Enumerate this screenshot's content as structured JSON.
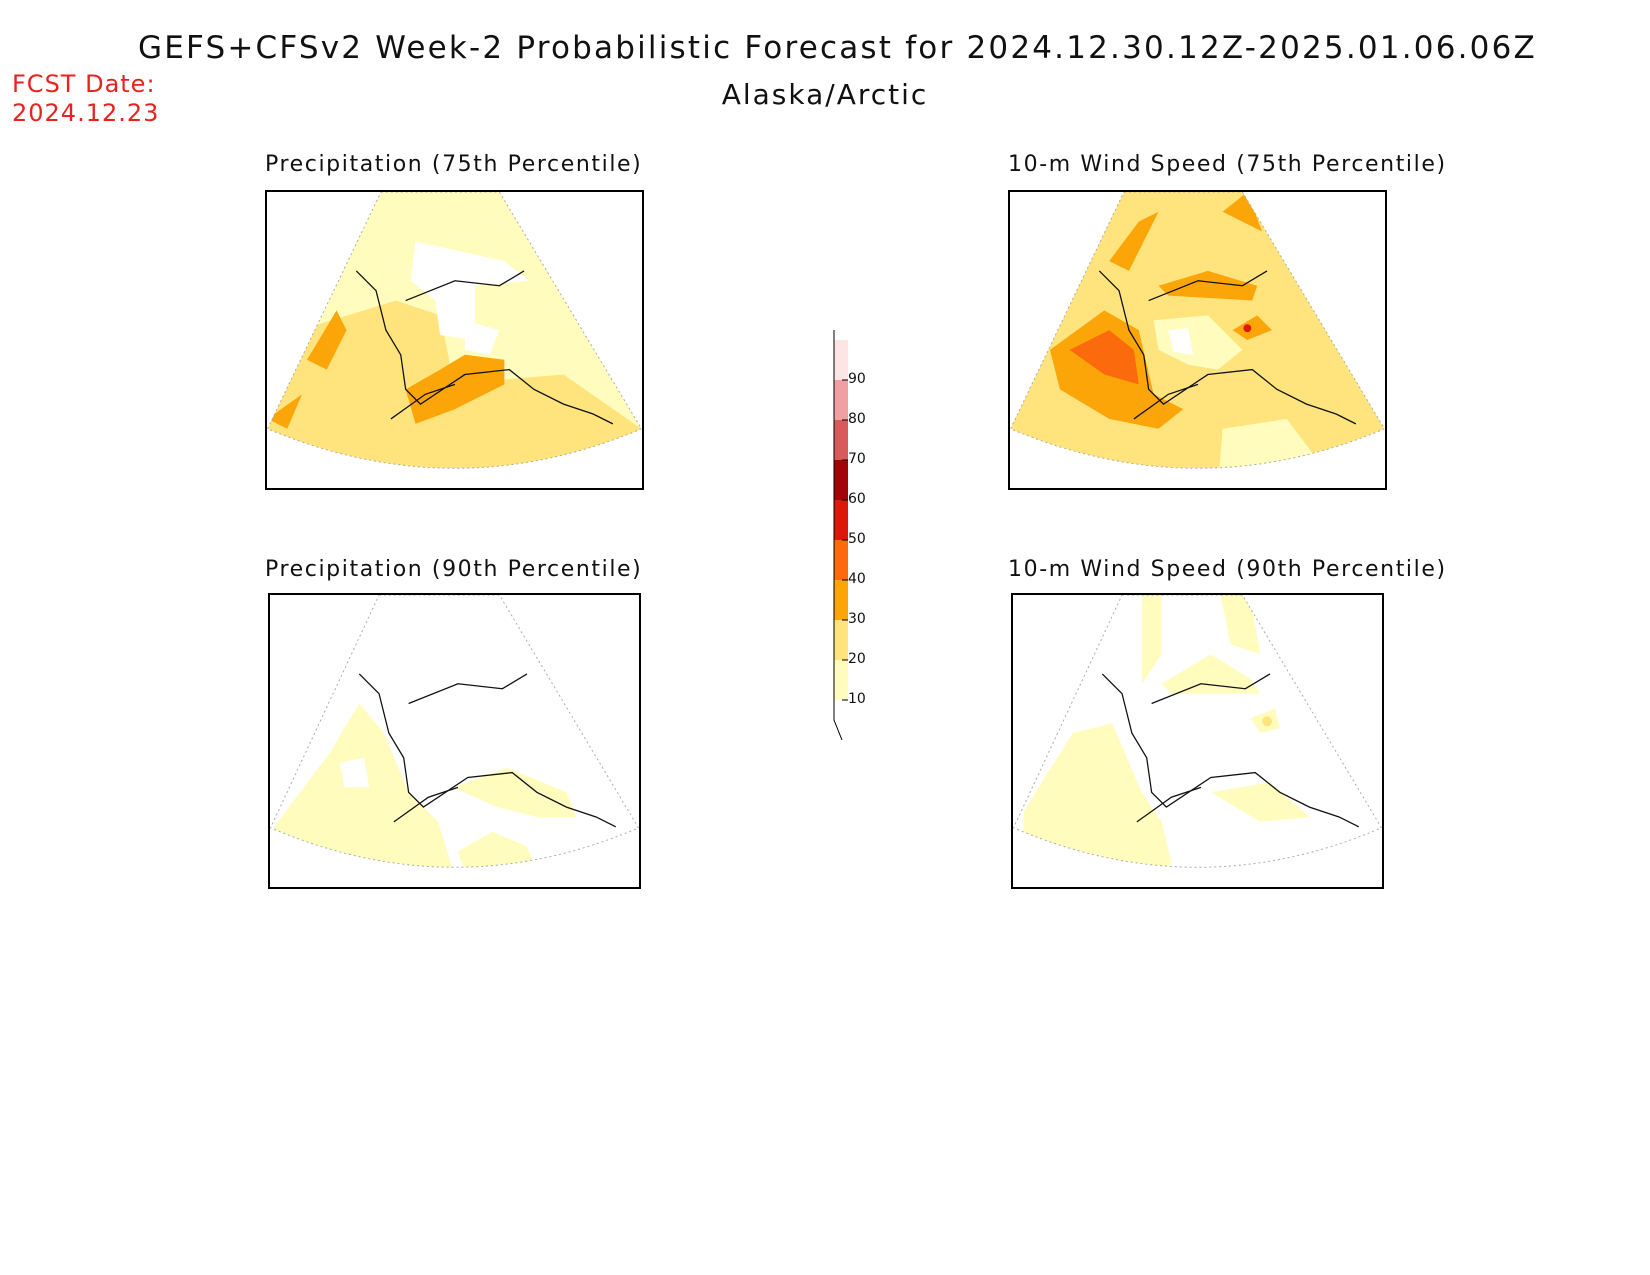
{
  "header": {
    "title": "GEFS+CFSv2 Week-2 Probabilistic Forecast for 2024.12.30.12Z-2025.01.06.06Z",
    "subtitle": "Alaska/Arctic",
    "fcst_label": "FCST Date:",
    "fcst_date": "2024.12.23"
  },
  "panels": [
    {
      "id": "precip75",
      "title": "Precipitation (75th Percentile)"
    },
    {
      "id": "wind75",
      "title": "10-m Wind Speed (75th Percentile)"
    },
    {
      "id": "precip90",
      "title": "Precipitation (90th Percentile)"
    },
    {
      "id": "wind90",
      "title": "10-m Wind Speed (90th Percentile)"
    }
  ],
  "colorbar": {
    "levels": [
      "10",
      "20",
      "30",
      "40",
      "50",
      "60",
      "70",
      "80",
      "90"
    ],
    "colors": [
      "#fffcbe",
      "#ffe47e",
      "#fca509",
      "#fb6a0c",
      "#db1809",
      "#a10505",
      "#d95a5a",
      "#f0a0a0",
      "#fde5e5"
    ]
  },
  "colors": {
    "fcst_date": "#e8231f",
    "shade_10_20": "#fffcbe",
    "shade_20_30": "#ffe47e",
    "shade_30_40": "#fca509",
    "shade_40_50": "#fb6a0c",
    "shade_50_60": "#db1809"
  }
}
